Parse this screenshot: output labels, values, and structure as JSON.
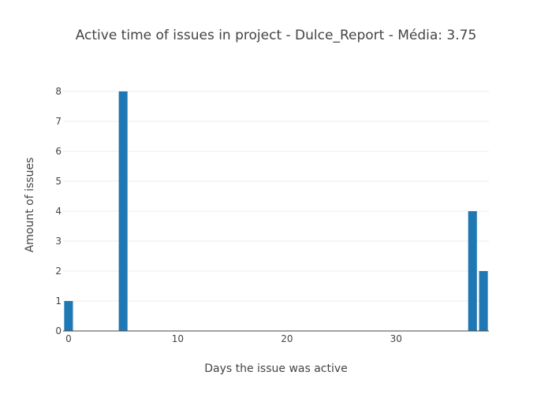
{
  "chart_data": {
    "type": "bar",
    "title": "Active time of issues in project - Dulce_Report - Média: 3.75",
    "xlabel": "Days the issue was active",
    "ylabel": "Amount of issues",
    "x": [
      0,
      5,
      37,
      38
    ],
    "values": [
      1,
      8,
      4,
      2
    ],
    "xlim": [
      -0.5,
      38.5
    ],
    "ylim": [
      0,
      8
    ],
    "x_ticks": [
      0,
      10,
      20,
      30
    ],
    "y_ticks": [
      0,
      1,
      2,
      3,
      4,
      5,
      6,
      7,
      8
    ],
    "bar_color": "#1f77b4",
    "grid": true
  }
}
